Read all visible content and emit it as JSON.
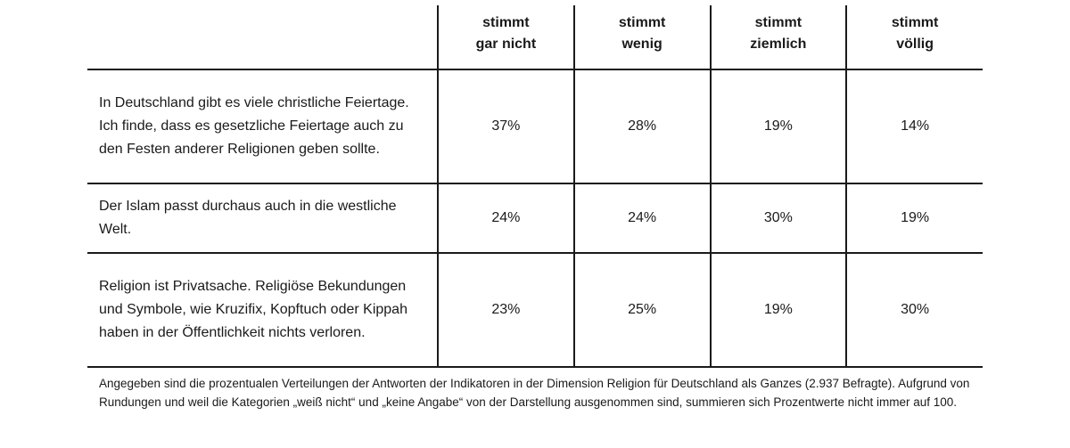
{
  "chart_data": {
    "type": "table",
    "columns": [
      "",
      "stimmt gar nicht",
      "stimmt wenig",
      "stimmt ziemlich",
      "stimmt völlig"
    ],
    "column_lines": [
      [
        "stimmt",
        "gar nicht"
      ],
      [
        "stimmt",
        "wenig"
      ],
      [
        "stimmt",
        "ziemlich"
      ],
      [
        "stimmt",
        "völlig"
      ]
    ],
    "rows": [
      {
        "statement": "In Deutschland gibt es viele christliche Feiertage. Ich finde, dass es gesetzliche Feiertage auch zu den Festen anderer Religionen geben sollte.",
        "values": [
          "37%",
          "28%",
          "19%",
          "14%"
        ]
      },
      {
        "statement": "Der Islam passt durchaus auch in die westliche Welt.",
        "values": [
          "24%",
          "24%",
          "30%",
          "19%"
        ]
      },
      {
        "statement": "Religion ist Privatsache. Religiöse Bekundungen und Symbole, wie Kruzifix, Kopftuch oder Kippah haben in der Öffentlichkeit nichts verloren.",
        "values": [
          "23%",
          "25%",
          "19%",
          "30%"
        ]
      }
    ],
    "footnote": "Angegeben sind die prozentualen Verteilungen der Antworten der Indikatoren in der Dimension Religion für Deutschland als Ganzes (2.937 Befragte). Aufgrund von Rundungen und weil die Kategorien „weiß nicht“ und „keine Angabe“ von der Darstellung ausgenommen sind, summieren sich Prozentwerte nicht immer auf 100."
  }
}
